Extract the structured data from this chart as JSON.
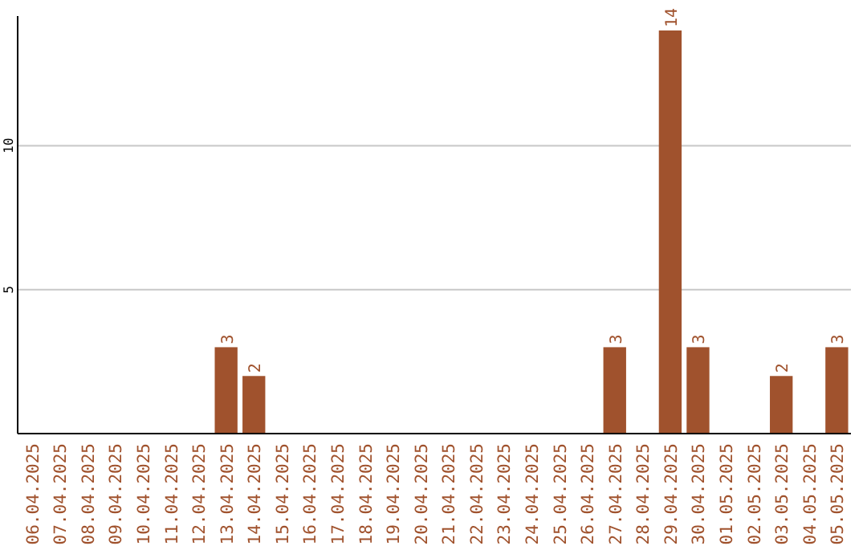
{
  "chart_data": {
    "type": "bar",
    "categories": [
      "06.04.2025",
      "07.04.2025",
      "08.04.2025",
      "09.04.2025",
      "10.04.2025",
      "11.04.2025",
      "12.04.2025",
      "13.04.2025",
      "14.04.2025",
      "15.04.2025",
      "16.04.2025",
      "17.04.2025",
      "18.04.2025",
      "19.04.2025",
      "20.04.2025",
      "21.04.2025",
      "22.04.2025",
      "23.04.2025",
      "24.04.2025",
      "25.04.2025",
      "26.04.2025",
      "27.04.2025",
      "28.04.2025",
      "29.04.2025",
      "30.04.2025",
      "01.05.2025",
      "02.05.2025",
      "03.05.2025",
      "04.05.2025",
      "05.05.2025"
    ],
    "values": [
      0,
      0,
      0,
      0,
      0,
      0,
      0,
      3,
      2,
      0,
      0,
      0,
      0,
      0,
      0,
      0,
      0,
      0,
      0,
      0,
      0,
      3,
      0,
      14,
      3,
      0,
      0,
      2,
      0,
      3
    ],
    "value_labels": [
      null,
      null,
      null,
      null,
      null,
      null,
      null,
      "3",
      "2",
      null,
      null,
      null,
      null,
      null,
      null,
      null,
      null,
      null,
      null,
      null,
      null,
      "3",
      null,
      "14",
      "3",
      null,
      null,
      "2",
      null,
      "3"
    ],
    "color": "#a0522d",
    "ylim": [
      0,
      14.5
    ],
    "yticks": [
      5,
      10
    ],
    "grid": "y"
  }
}
